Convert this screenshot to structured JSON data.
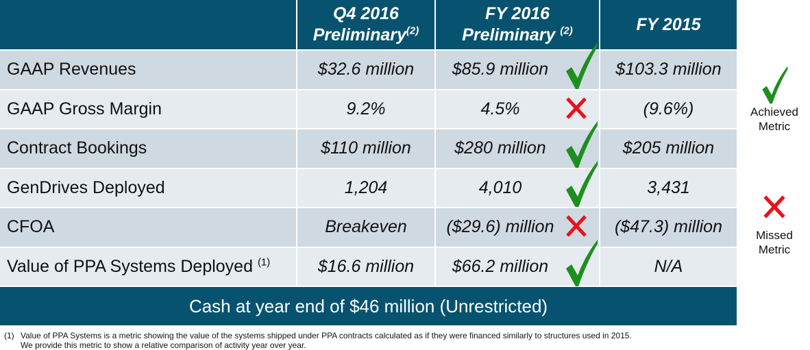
{
  "table": {
    "header": {
      "col_q4_2016": {
        "line1": "Q4 2016",
        "line2": "Preliminary",
        "note": "(2)"
      },
      "col_fy_2016": {
        "line1": "FY 2016",
        "line2": "Preliminary",
        "note": "(2)"
      },
      "col_fy_2015": {
        "label": "FY 2015"
      }
    },
    "rows": [
      {
        "metric": "GAAP Revenues",
        "note": "",
        "q4_2016": "$32.6 million",
        "fy_2016": "$85.9 million",
        "fy_2016_status": "achieved",
        "fy_2015": "$103.3 million"
      },
      {
        "metric": "GAAP Gross Margin",
        "note": "",
        "q4_2016": "9.2%",
        "fy_2016": "4.5%",
        "fy_2016_status": "missed",
        "fy_2015": "(9.6%)"
      },
      {
        "metric": "Contract Bookings",
        "note": "",
        "q4_2016": "$110 million",
        "fy_2016": "$280 million",
        "fy_2016_status": "achieved",
        "fy_2015": "$205 million"
      },
      {
        "metric": "GenDrives Deployed",
        "note": "",
        "q4_2016": "1,204",
        "fy_2016": "4,010",
        "fy_2016_status": "achieved",
        "fy_2015": "3,431"
      },
      {
        "metric": "CFOA",
        "note": "",
        "q4_2016": "Breakeven",
        "fy_2016": "($29.6) million",
        "fy_2016_status": "missed",
        "fy_2015": "($47.3) million"
      },
      {
        "metric": "Value of PPA Systems Deployed",
        "note": "(1)",
        "q4_2016": "$16.6 million",
        "fy_2016": "$66.2 million",
        "fy_2016_status": "achieved",
        "fy_2015": "N/A"
      }
    ]
  },
  "cash_banner": "Cash at year end of $46 million (Unrestricted)",
  "footnote": {
    "marker": "(1)",
    "line1": "Value of PPA Systems is a metric showing the value of the systems shipped under PPA contracts calculated as if they were financed similarly to structures used in 2015.",
    "line2": "We provide this metric to show a relative comparison of activity year over year."
  },
  "legend": {
    "achieved": {
      "icon": "checkmark-icon",
      "line1": "Achieved",
      "line2": "Metric"
    },
    "missed": {
      "icon": "x-mark-icon",
      "line1": "Missed",
      "line2": "Metric"
    }
  },
  "colors": {
    "header_bg": "#07536f",
    "row_dark": "#cfd9e1",
    "row_light": "#e6ebef",
    "check_green": "#1e8f1e",
    "cross_red": "#e8121b"
  }
}
